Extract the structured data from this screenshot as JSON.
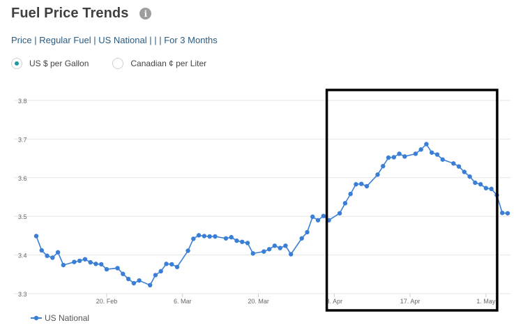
{
  "page": {
    "title": "Fuel Price Trends",
    "subtitle": "Price | Regular Fuel | US National | | | For 3 Months",
    "info_icon": "i",
    "units": [
      {
        "label": "US $ per Gallon",
        "selected": true
      },
      {
        "label": "Canadian ¢ per Liter",
        "selected": false
      }
    ]
  },
  "chart_data": {
    "type": "line",
    "title": "",
    "xlabel": "",
    "ylabel": "",
    "ylim": [
      3.3,
      3.8
    ],
    "yticks": [
      {
        "v": 3.3,
        "label": "3.3"
      },
      {
        "v": 3.4,
        "label": "3.4"
      },
      {
        "v": 3.5,
        "label": "3.5"
      },
      {
        "v": 3.6,
        "label": "3.6"
      },
      {
        "v": 3.7,
        "label": "3.7"
      },
      {
        "v": 3.8,
        "label": "3.8"
      }
    ],
    "xlim": [
      "2023-02-07",
      "2023-05-05"
    ],
    "xticks": [
      {
        "date": "2023-02-20",
        "label": "20. Feb"
      },
      {
        "date": "2023-03-06",
        "label": "6. Mar"
      },
      {
        "date": "2023-03-20",
        "label": "20. Mar"
      },
      {
        "date": "2023-04-03",
        "label": "3. Apr"
      },
      {
        "date": "2023-04-17",
        "label": "17. Apr"
      },
      {
        "date": "2023-05-01",
        "label": "1. May"
      }
    ],
    "grid": "horizontal",
    "legend": "bottom-left",
    "color": "#3a7fd5",
    "series": [
      {
        "name": "US National",
        "points": [
          [
            "2023-02-07",
            3.449
          ],
          [
            "2023-02-08",
            3.412
          ],
          [
            "2023-02-09",
            3.398
          ],
          [
            "2023-02-10",
            3.393
          ],
          [
            "2023-02-11",
            3.407
          ],
          [
            "2023-02-12",
            3.374
          ],
          [
            "2023-02-14",
            3.382
          ],
          [
            "2023-02-15",
            3.385
          ],
          [
            "2023-02-16",
            3.389
          ],
          [
            "2023-02-17",
            3.381
          ],
          [
            "2023-02-18",
            3.377
          ],
          [
            "2023-02-19",
            3.376
          ],
          [
            "2023-02-20",
            3.363
          ],
          [
            "2023-02-22",
            3.366
          ],
          [
            "2023-02-23",
            3.351
          ],
          [
            "2023-02-24",
            3.338
          ],
          [
            "2023-02-25",
            3.327
          ],
          [
            "2023-02-26",
            3.334
          ],
          [
            "2023-02-28",
            3.322
          ],
          [
            "2023-03-01",
            3.348
          ],
          [
            "2023-03-02",
            3.358
          ],
          [
            "2023-03-03",
            3.377
          ],
          [
            "2023-03-04",
            3.376
          ],
          [
            "2023-03-05",
            3.369
          ],
          [
            "2023-03-07",
            3.411
          ],
          [
            "2023-03-08",
            3.442
          ],
          [
            "2023-03-09",
            3.451
          ],
          [
            "2023-03-10",
            3.449
          ],
          [
            "2023-03-11",
            3.448
          ],
          [
            "2023-03-12",
            3.448
          ],
          [
            "2023-03-14",
            3.443
          ],
          [
            "2023-03-15",
            3.446
          ],
          [
            "2023-03-16",
            3.437
          ],
          [
            "2023-03-17",
            3.434
          ],
          [
            "2023-03-18",
            3.431
          ],
          [
            "2023-03-19",
            3.404
          ],
          [
            "2023-03-21",
            3.409
          ],
          [
            "2023-03-22",
            3.415
          ],
          [
            "2023-03-23",
            3.424
          ],
          [
            "2023-03-24",
            3.418
          ],
          [
            "2023-03-25",
            3.424
          ],
          [
            "2023-03-26",
            3.402
          ],
          [
            "2023-03-28",
            3.443
          ],
          [
            "2023-03-29",
            3.459
          ],
          [
            "2023-03-30",
            3.499
          ],
          [
            "2023-03-31",
            3.49
          ],
          [
            "2023-04-01",
            3.501
          ],
          [
            "2023-04-02",
            3.49
          ],
          [
            "2023-04-04",
            3.508
          ],
          [
            "2023-04-05",
            3.534
          ],
          [
            "2023-04-06",
            3.558
          ],
          [
            "2023-04-07",
            3.583
          ],
          [
            "2023-04-08",
            3.584
          ],
          [
            "2023-04-09",
            3.578
          ],
          [
            "2023-04-11",
            3.608
          ],
          [
            "2023-04-12",
            3.63
          ],
          [
            "2023-04-13",
            3.652
          ],
          [
            "2023-04-14",
            3.653
          ],
          [
            "2023-04-15",
            3.662
          ],
          [
            "2023-04-16",
            3.655
          ],
          [
            "2023-04-18",
            3.662
          ],
          [
            "2023-04-19",
            3.673
          ],
          [
            "2023-04-20",
            3.687
          ],
          [
            "2023-04-21",
            3.665
          ],
          [
            "2023-04-22",
            3.66
          ],
          [
            "2023-04-23",
            3.647
          ],
          [
            "2023-04-25",
            3.637
          ],
          [
            "2023-04-26",
            3.629
          ],
          [
            "2023-04-27",
            3.615
          ],
          [
            "2023-04-28",
            3.603
          ],
          [
            "2023-04-29",
            3.587
          ],
          [
            "2023-04-30",
            3.583
          ],
          [
            "2023-05-01",
            3.573
          ],
          [
            "2023-05-02",
            3.571
          ],
          [
            "2023-05-03",
            3.555
          ],
          [
            "2023-05-04",
            3.509
          ],
          [
            "2023-05-05",
            3.508
          ]
        ]
      }
    ],
    "annotation": {
      "type": "rectangle-highlight",
      "from": "2023-04-02",
      "to": "2023-05-01",
      "color": "#000000"
    }
  }
}
